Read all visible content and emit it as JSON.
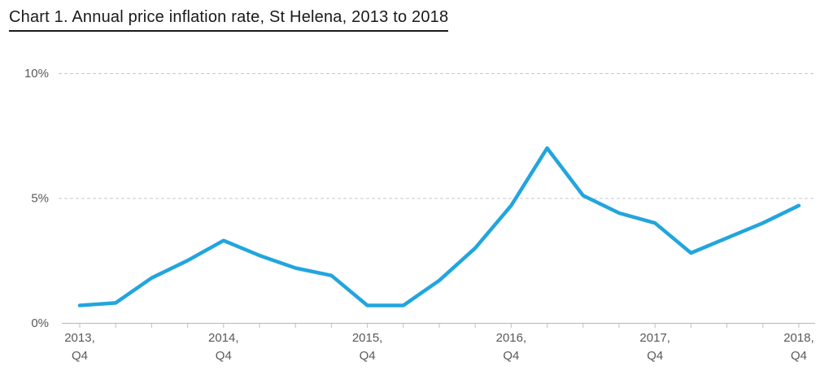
{
  "title": "Chart 1. Annual price inflation rate, St Helena, 2013 to 2018",
  "colors": {
    "line": "#22A5DE",
    "grid": "#c9c9c9",
    "axis": "#bfbfbf",
    "label": "#595959",
    "title": "#1a1a1a",
    "background": "#ffffff"
  },
  "chart_data": {
    "type": "line",
    "title": "Chart 1. Annual price inflation rate, St Helena, 2013 to 2018",
    "xlabel": "",
    "ylabel": "",
    "ylim": [
      0,
      10
    ],
    "grid": "horizontal dashed at 5% and 10%, solid axis at 0%",
    "legend": "none",
    "x": [
      "2013 Q4",
      "2014 Q1",
      "2014 Q2",
      "2014 Q3",
      "2014 Q4",
      "2015 Q1",
      "2015 Q2",
      "2015 Q3",
      "2015 Q4",
      "2016 Q1",
      "2016 Q2",
      "2016 Q3",
      "2016 Q4",
      "2017 Q1",
      "2017 Q2",
      "2017 Q3",
      "2017 Q4",
      "2018 Q1",
      "2018 Q2",
      "2018 Q3",
      "2018 Q4"
    ],
    "values": [
      0.7,
      0.8,
      1.8,
      2.5,
      3.3,
      2.7,
      2.2,
      1.9,
      0.7,
      0.7,
      1.7,
      3.0,
      4.7,
      7.0,
      5.1,
      4.4,
      4.0,
      2.8,
      3.4,
      4.0,
      4.7
    ],
    "y_ticks": [
      {
        "value": 0,
        "label": "0%"
      },
      {
        "value": 5,
        "label": "5%"
      },
      {
        "value": 10,
        "label": "10%"
      }
    ],
    "x_axis_labels": [
      {
        "index": 0,
        "line1": "2013,",
        "line2": "Q4"
      },
      {
        "index": 4,
        "line1": "2014,",
        "line2": "Q4"
      },
      {
        "index": 8,
        "line1": "2015,",
        "line2": "Q4"
      },
      {
        "index": 12,
        "line1": "2016,",
        "line2": "Q4"
      },
      {
        "index": 16,
        "line1": "2017,",
        "line2": "Q4"
      },
      {
        "index": 20,
        "line1": "2018,",
        "line2": "Q4"
      }
    ]
  }
}
